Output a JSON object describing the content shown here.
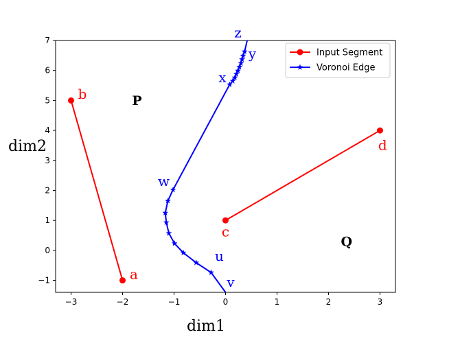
{
  "chart_data": {
    "type": "line",
    "xlabel": "dim1",
    "ylabel": "dim2",
    "xlim": [
      -3.3,
      3.3
    ],
    "ylim": [
      -1.4,
      7.0
    ],
    "xticks": [
      -3,
      -2,
      -1,
      0,
      1,
      2,
      3
    ],
    "yticks": [
      -1,
      0,
      1,
      2,
      3,
      4,
      5,
      6,
      7
    ],
    "legend_position": "top-right",
    "series": [
      {
        "name": "Input Segment",
        "color": "#ff0000",
        "marker": "circle",
        "segments": [
          [
            {
              "x": -2,
              "y": -1
            },
            {
              "x": -3,
              "y": 5
            }
          ],
          [
            {
              "x": 0,
              "y": 1
            },
            {
              "x": 3,
              "y": 4
            }
          ]
        ]
      },
      {
        "name": "Voronoi Edge",
        "color": "#0000ff",
        "marker": "star",
        "curve": [
          {
            "x": 0.0,
            "y": -1.4
          },
          {
            "x": -0.28,
            "y": -0.74
          },
          {
            "x": -0.57,
            "y": -0.41
          },
          {
            "x": -0.82,
            "y": -0.08
          },
          {
            "x": -0.99,
            "y": 0.23
          },
          {
            "x": -1.1,
            "y": 0.57
          },
          {
            "x": -1.15,
            "y": 0.93
          },
          {
            "x": -1.17,
            "y": 1.25
          },
          {
            "x": -1.12,
            "y": 1.65
          },
          {
            "x": -1.02,
            "y": 2.02
          },
          {
            "x": 0.08,
            "y": 5.53
          },
          {
            "x": 0.14,
            "y": 5.65
          },
          {
            "x": 0.18,
            "y": 5.76
          },
          {
            "x": 0.21,
            "y": 5.88
          },
          {
            "x": 0.24,
            "y": 5.99
          },
          {
            "x": 0.27,
            "y": 6.12
          },
          {
            "x": 0.3,
            "y": 6.24
          },
          {
            "x": 0.32,
            "y": 6.37
          },
          {
            "x": 0.34,
            "y": 6.49
          },
          {
            "x": 0.37,
            "y": 6.63
          },
          {
            "x": 0.42,
            "y": 7.0
          }
        ],
        "star_indices": [
          1,
          2,
          3,
          4,
          5,
          6,
          7,
          8,
          9,
          10,
          11,
          12,
          13,
          14,
          15,
          16,
          17,
          18,
          19
        ]
      }
    ],
    "point_labels": [
      {
        "text": "a",
        "x": -1.78,
        "y": -0.95,
        "color": "#ff0000"
      },
      {
        "text": "b",
        "x": -2.78,
        "y": 5.05,
        "color": "#ff0000"
      },
      {
        "text": "c",
        "x": 0.0,
        "y": 0.47,
        "color": "#ff0000"
      },
      {
        "text": "d",
        "x": 3.05,
        "y": 3.35,
        "color": "#ff0000"
      },
      {
        "text": "u",
        "x": -0.12,
        "y": -0.35,
        "color": "#0000ff"
      },
      {
        "text": "v",
        "x": 0.1,
        "y": -1.22,
        "color": "#0000ff"
      },
      {
        "text": "w",
        "x": -1.2,
        "y": 2.15,
        "color": "#0000ff"
      },
      {
        "text": "x",
        "x": -0.06,
        "y": 5.62,
        "color": "#0000ff"
      },
      {
        "text": "y",
        "x": 0.52,
        "y": 6.4,
        "color": "#0000ff"
      },
      {
        "text": "z",
        "x": 0.24,
        "y": 7.1,
        "color": "#0000ff"
      }
    ],
    "region_labels": [
      {
        "text": "P",
        "x": -1.72,
        "y": 4.85
      },
      {
        "text": "Q",
        "x": 2.35,
        "y": 0.15
      }
    ]
  }
}
